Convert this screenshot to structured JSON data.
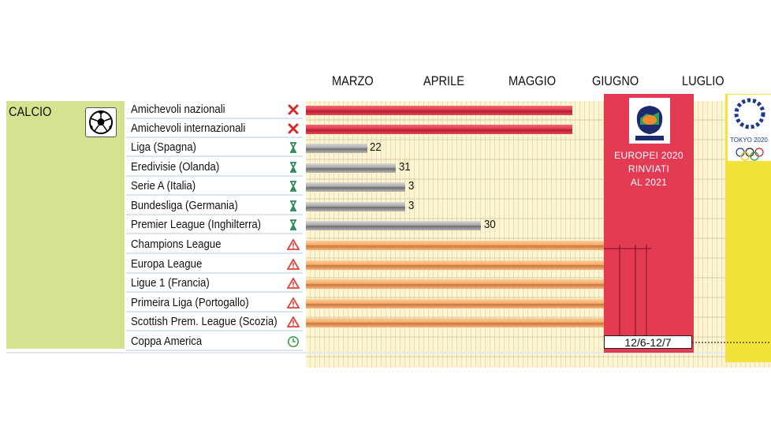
{
  "months": [
    "MARZO",
    "APRILE",
    "MAGGIO",
    "GIUGNO",
    "LUGLIO"
  ],
  "sport": {
    "label": "CALCIO",
    "icon": "soccer-ball-icon"
  },
  "rows": [
    {
      "label": "Amichevoli nazionali",
      "status_icon": "cancelled-x-icon",
      "bar": "red",
      "value": ""
    },
    {
      "label": "Amichevoli internazionali",
      "status_icon": "cancelled-x-icon",
      "bar": "red",
      "value": ""
    },
    {
      "label": "Liga (Spagna)",
      "status_icon": "hourglass-icon",
      "bar": "gray",
      "value": "22"
    },
    {
      "label": "Eredivisie (Olanda)",
      "status_icon": "hourglass-icon",
      "bar": "gray",
      "value": "31"
    },
    {
      "label": "Serie A (Italia)",
      "status_icon": "hourglass-icon",
      "bar": "gray",
      "value": "3"
    },
    {
      "label": "Bundesliga (Germania)",
      "status_icon": "hourglass-icon",
      "bar": "gray",
      "value": "3"
    },
    {
      "label": "Premier League (Inghilterra)",
      "status_icon": "hourglass-icon",
      "bar": "gray",
      "value": "30"
    },
    {
      "label": "Champions League",
      "status_icon": "warning-triangle-icon",
      "bar": "orange",
      "value": ""
    },
    {
      "label": "Europa League",
      "status_icon": "warning-triangle-icon",
      "bar": "orange",
      "value": ""
    },
    {
      "label": "Ligue 1 (Francia)",
      "status_icon": "warning-triangle-icon",
      "bar": "orange",
      "value": ""
    },
    {
      "label": "Primeira Liga (Portogallo)",
      "status_icon": "warning-triangle-icon",
      "bar": "orange",
      "value": ""
    },
    {
      "label": "Scottish Prem. League (Scozia)",
      "status_icon": "warning-triangle-icon",
      "bar": "orange",
      "value": ""
    },
    {
      "label": "Coppa America",
      "status_icon": "clock-icon",
      "bar": "none",
      "value": ""
    }
  ],
  "euro": {
    "logo_text": "EURO2020",
    "line1": "EUROPEI 2020",
    "line2": "RINVIATI",
    "line3": "AL 2021",
    "color": "#e43b55"
  },
  "coppa_america_dates": "12/6-12/7",
  "tokyo": {
    "logo_text": "TOKYO 2020",
    "color": "#f2e23a"
  },
  "colors": {
    "cancelled": "#e0394c",
    "suspended": "#8c8c8c",
    "at_risk": "#f4a969",
    "sport_cell": "#d4e38f",
    "grid_background": "#fdf5d2"
  }
}
